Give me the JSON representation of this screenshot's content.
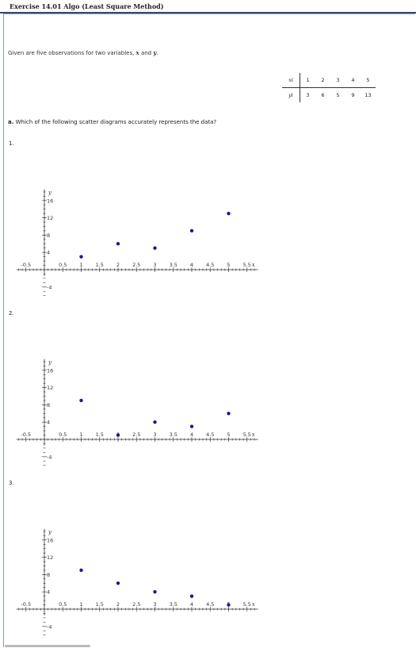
{
  "header": {
    "title": "Exercise 14.01 Algo (Least Square Method)"
  },
  "intro": {
    "text_before": "Given are five observations for two variables, ",
    "var_x": "x",
    "text_mid": " and ",
    "var_y": "y",
    "text_after": "."
  },
  "table": {
    "x_header": "xi",
    "y_header": "yi",
    "x_values": [
      "1",
      "2",
      "3",
      "4",
      "5"
    ],
    "y_values": [
      "3",
      "6",
      "5",
      "9",
      "13"
    ]
  },
  "question": {
    "label": "a.",
    "text": "Which of the following scatter diagrams accurately represents the data?"
  },
  "options": [
    {
      "number": "1."
    },
    {
      "number": "2."
    },
    {
      "number": "3."
    }
  ],
  "chart_data": [
    {
      "type": "scatter",
      "x": [
        1,
        2,
        3,
        4,
        5
      ],
      "y": [
        3,
        6,
        5,
        9,
        13
      ],
      "xlabel": "x",
      "ylabel": "y",
      "xlim": [
        -0.5,
        5.5
      ],
      "ylim": [
        -4,
        16
      ],
      "x_ticks": [
        "-0.5",
        "0.5",
        "1",
        "1.5",
        "2",
        "2.5",
        "3",
        "3.5",
        "4",
        "4.5",
        "5",
        "5.5"
      ],
      "y_ticks": [
        "16",
        "12",
        "8",
        "4",
        "-4"
      ],
      "point_color": "#1a1a8c"
    },
    {
      "type": "scatter",
      "x": [
        1,
        2,
        3,
        4,
        5
      ],
      "y": [
        9,
        1,
        4,
        3,
        6
      ],
      "xlabel": "x",
      "ylabel": "y",
      "xlim": [
        -0.5,
        5.5
      ],
      "ylim": [
        -4,
        16
      ],
      "x_ticks": [
        "-0.5",
        "0.5",
        "1",
        "1.5",
        "2",
        "2.5",
        "3",
        "3.5",
        "4",
        "4.5",
        "5",
        "5.5"
      ],
      "y_ticks": [
        "16",
        "12",
        "8",
        "4",
        "-4"
      ],
      "point_color": "#1a1a8c"
    },
    {
      "type": "scatter",
      "x": [
        1,
        2,
        3,
        4,
        5
      ],
      "y": [
        9,
        6,
        4,
        3,
        1
      ],
      "xlabel": "x",
      "ylabel": "y",
      "xlim": [
        -0.5,
        5.5
      ],
      "ylim": [
        -4,
        16
      ],
      "x_ticks": [
        "-0.5",
        "0.5",
        "1",
        "1.5",
        "2",
        "2.5",
        "3",
        "3.5",
        "4",
        "4.5",
        "5",
        "5.5"
      ],
      "y_ticks": [
        "16",
        "12",
        "8",
        "4",
        "-4"
      ],
      "point_color": "#1a1a8c"
    }
  ]
}
